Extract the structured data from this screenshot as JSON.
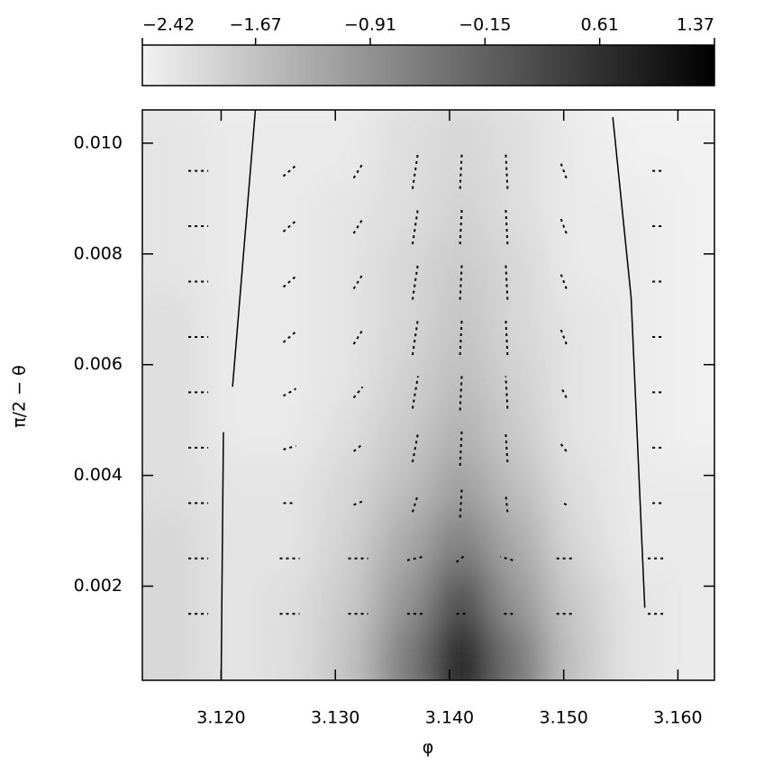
{
  "chart_data": {
    "type": "heatmap",
    "x_label": "φ",
    "y_label": "π/2 − θ",
    "xlim": [
      3.1131,
      3.1632
    ],
    "ylim": [
      0.0003,
      0.0106
    ],
    "xticks": [
      {
        "value": 3.12,
        "label": "3.120"
      },
      {
        "value": 3.13,
        "label": "3.130"
      },
      {
        "value": 3.14,
        "label": "3.140"
      },
      {
        "value": 3.15,
        "label": "3.150"
      },
      {
        "value": 3.16,
        "label": "3.160"
      }
    ],
    "yticks": [
      {
        "value": 0.002,
        "label": "0.002"
      },
      {
        "value": 0.004,
        "label": "0.004"
      },
      {
        "value": 0.006,
        "label": "0.006"
      },
      {
        "value": 0.008,
        "label": "0.008"
      },
      {
        "value": 0.01,
        "label": "0.010"
      }
    ],
    "zlim": [
      -2.42,
      1.37
    ],
    "zticks": [
      {
        "value": -2.42,
        "label": "−2.42"
      },
      {
        "value": -1.67,
        "label": "−1.67"
      },
      {
        "value": -0.91,
        "label": "−0.91"
      },
      {
        "value": -0.15,
        "label": "−0.15"
      },
      0.61,
      1.37
    ],
    "low_color": "#f2f2f2",
    "high_color": "#000000",
    "x": [
      3.116,
      3.121,
      3.126,
      3.131,
      3.136,
      3.141,
      3.146,
      3.151,
      3.156,
      3.161
    ],
    "y": [
      0.0008,
      0.0018,
      0.0028,
      0.0038,
      0.0048,
      0.0058,
      0.0068,
      0.0078,
      0.0088,
      0.0098
    ],
    "z": [
      [
        -2.0,
        -2.2,
        -2.1,
        -1.7,
        -0.6,
        1.2,
        -0.5,
        -1.7,
        -2.2,
        -2.3
      ],
      [
        -2.0,
        -2.2,
        -2.1,
        -1.8,
        -1.0,
        0.2,
        -1.0,
        -1.8,
        -2.2,
        -2.3
      ],
      [
        -2.0,
        -2.2,
        -2.2,
        -1.9,
        -1.3,
        -0.6,
        -1.3,
        -2.0,
        -2.3,
        -2.3
      ],
      [
        -2.1,
        -2.2,
        -2.2,
        -2.0,
        -1.6,
        -1.1,
        -1.6,
        -2.1,
        -2.3,
        -2.3
      ],
      [
        -2.1,
        -2.3,
        -2.3,
        -2.1,
        -1.8,
        -1.4,
        -1.8,
        -2.2,
        -2.3,
        -2.4
      ],
      [
        -2.1,
        -2.3,
        -2.3,
        -2.2,
        -1.9,
        -1.6,
        -1.9,
        -2.2,
        -2.3,
        -2.4
      ],
      [
        -2.1,
        -2.3,
        -2.3,
        -2.2,
        -2.0,
        -1.7,
        -2.0,
        -2.2,
        -2.3,
        -2.4
      ],
      [
        -2.2,
        -2.3,
        -2.3,
        -2.2,
        -2.0,
        -1.8,
        -2.0,
        -2.3,
        -2.3,
        -2.4
      ],
      [
        -2.2,
        -2.3,
        -2.3,
        -2.2,
        -2.1,
        -1.9,
        -2.1,
        -2.3,
        -2.3,
        -2.4
      ],
      [
        -2.2,
        -2.3,
        -2.3,
        -2.3,
        -2.1,
        -2.0,
        -2.1,
        -2.3,
        -2.4,
        -2.4
      ]
    ],
    "vectors": {
      "color": "#000000",
      "x": [
        3.118,
        3.126,
        3.132,
        3.137,
        3.141,
        3.145,
        3.15,
        3.158
      ],
      "y": [
        0.0015,
        0.0025,
        0.0035,
        0.0045,
        0.0055,
        0.0065,
        0.0075,
        0.0085,
        0.0095
      ],
      "u": [
        [
          0.5,
          0.5,
          0.5,
          0.4,
          0.2,
          -0.4,
          -0.5,
          -0.5
        ],
        [
          0.5,
          0.5,
          0.5,
          0.4,
          0.2,
          -0.4,
          -0.5,
          -0.5
        ],
        [
          0.5,
          0.3,
          0.2,
          0.1,
          0.0,
          -0.1,
          -0.2,
          -0.4
        ],
        [
          0.5,
          0.3,
          0.2,
          0.1,
          0.0,
          -0.1,
          -0.2,
          -0.4
        ],
        [
          0.5,
          0.3,
          0.2,
          0.1,
          0.0,
          -0.1,
          -0.2,
          -0.4
        ],
        [
          0.5,
          0.3,
          0.2,
          0.1,
          0.0,
          -0.1,
          -0.2,
          -0.4
        ],
        [
          0.5,
          0.3,
          0.2,
          0.1,
          0.0,
          -0.1,
          -0.2,
          -0.4
        ],
        [
          0.5,
          0.3,
          0.2,
          0.1,
          0.0,
          -0.1,
          -0.2,
          -0.4
        ],
        [
          0.5,
          0.3,
          0.2,
          0.1,
          0.0,
          -0.1,
          -0.2,
          -0.4
        ]
      ],
      "v": [
        [
          0,
          0,
          0,
          0,
          0,
          0,
          0,
          0
        ],
        [
          0,
          0,
          0,
          0.1,
          0.2,
          0.1,
          0,
          0
        ],
        [
          0,
          0,
          0.1,
          0.5,
          0.8,
          0.5,
          0.1,
          0
        ],
        [
          0,
          0.1,
          0.2,
          0.8,
          1.0,
          0.8,
          0.2,
          0
        ],
        [
          0,
          0.2,
          0.3,
          0.9,
          1.0,
          0.9,
          0.3,
          0
        ],
        [
          0,
          0.3,
          0.4,
          1.0,
          1.0,
          1.0,
          0.4,
          0
        ],
        [
          0,
          0.3,
          0.4,
          1.0,
          1.0,
          1.0,
          0.4,
          0
        ],
        [
          0,
          0.3,
          0.4,
          1.0,
          1.0,
          1.0,
          0.4,
          0
        ],
        [
          0,
          0.3,
          0.4,
          1.0,
          1.0,
          1.0,
          0.4,
          0
        ]
      ]
    },
    "contours": [
      {
        "x": [
          3.12,
          3.1202,
          null,
          3.121,
          3.123
        ],
        "y": [
          0.00031,
          0.00478,
          null,
          0.0056,
          0.0106
        ]
      },
      {
        "x": [
          3.1571,
          3.1559,
          3.1543
        ],
        "y": [
          0.00161,
          0.00722,
          0.01047
        ]
      }
    ]
  }
}
